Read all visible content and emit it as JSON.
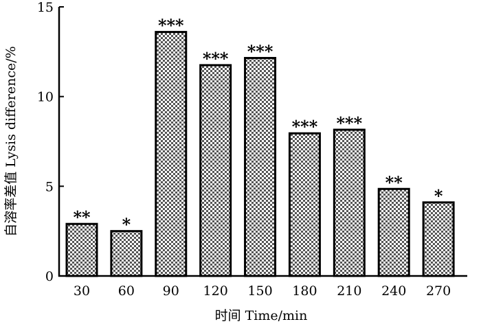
{
  "chart_data": {
    "type": "bar",
    "xlabel": "时间 Time/min",
    "ylabel": "自溶率差值 Lysis difference/%",
    "categories": [
      "30",
      "60",
      "90",
      "120",
      "150",
      "180",
      "210",
      "240",
      "270"
    ],
    "values": [
      2.9,
      2.5,
      13.6,
      11.75,
      12.15,
      7.95,
      8.15,
      4.85,
      4.1
    ],
    "significance": [
      "**",
      "*",
      "***",
      "***",
      "***",
      "***",
      "***",
      "**",
      "*"
    ],
    "ylim": [
      0,
      15
    ],
    "yticks": [
      "0",
      "5",
      "10",
      "15"
    ],
    "bar_fill": "checkered",
    "grid": false,
    "legend": "none"
  }
}
